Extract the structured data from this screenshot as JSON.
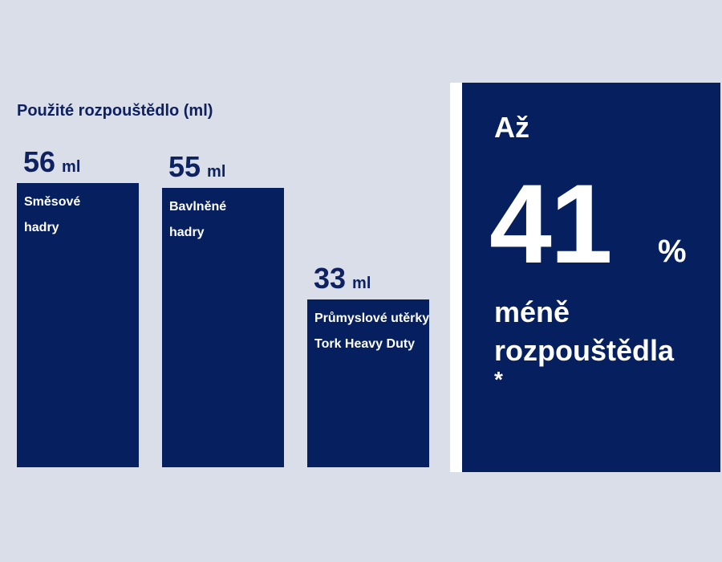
{
  "chart_data": {
    "type": "bar",
    "title": "Použité rozpouštědlo (ml)",
    "categories": [
      [
        "Směsové",
        "hadry"
      ],
      [
        "Bavlněné",
        "hadry"
      ],
      [
        "Průmyslové utěrky",
        "Tork Heavy Duty"
      ]
    ],
    "values": [
      56,
      55,
      33
    ],
    "value_labels": [
      "56",
      "55",
      "33"
    ],
    "unit": "ml",
    "ylim": [
      0,
      56
    ],
    "grid": false,
    "bar_color": "#06205f"
  },
  "highlight": {
    "prefix": "Až",
    "value": "41",
    "unit": "%",
    "text_lines": [
      "méně",
      "rozpouštědla"
    ],
    "note": "*"
  },
  "colors": {
    "background": "#d9dee8",
    "accent": "#06205f",
    "separator": "#ffffff"
  }
}
